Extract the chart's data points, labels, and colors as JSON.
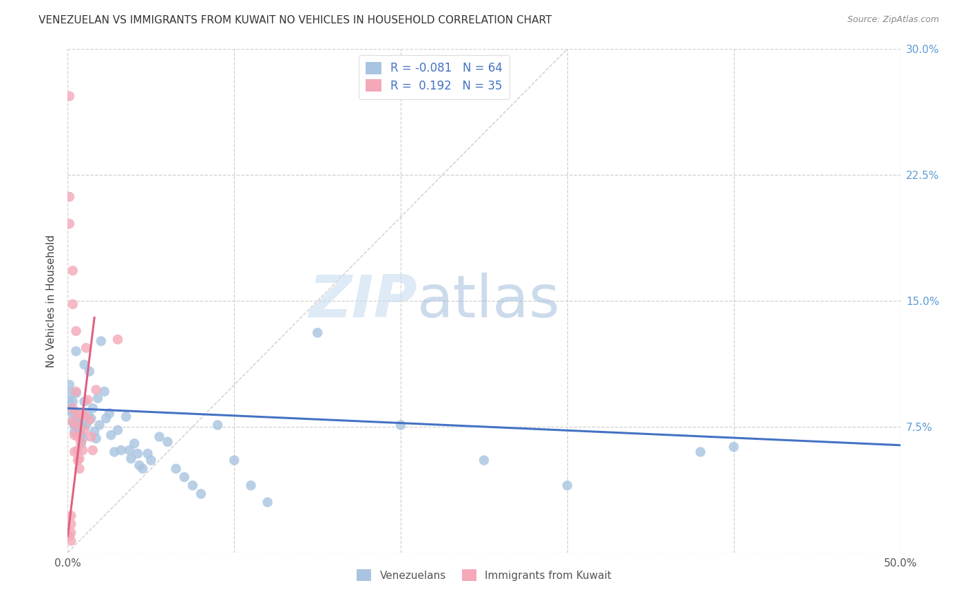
{
  "title": "VENEZUELAN VS IMMIGRANTS FROM KUWAIT NO VEHICLES IN HOUSEHOLD CORRELATION CHART",
  "source": "Source: ZipAtlas.com",
  "ylabel": "No Vehicles in Household",
  "xlim": [
    0.0,
    0.5
  ],
  "ylim": [
    0.0,
    0.3
  ],
  "xtick_positions": [
    0.0,
    0.1,
    0.2,
    0.3,
    0.4,
    0.5
  ],
  "xtick_labels": [
    "0.0%",
    "",
    "",
    "",
    "",
    "50.0%"
  ],
  "ytick_positions": [
    0.0,
    0.075,
    0.15,
    0.225,
    0.3
  ],
  "ytick_labels_right": [
    "",
    "7.5%",
    "15.0%",
    "22.5%",
    "30.0%"
  ],
  "r_venezuelan": -0.081,
  "n_venezuelan": 64,
  "r_kuwait": 0.192,
  "n_kuwait": 35,
  "venezuelan_color": "#a8c4e0",
  "kuwait_color": "#f4a8b8",
  "trendline_venezuelan_color": "#4472c4",
  "trendline_kuwait_color": "#e06080",
  "trendline_dashed_color": "#c8c8c8",
  "background_color": "#ffffff",
  "grid_color": "#d0d0d0",
  "watermark_zip": "ZIP",
  "watermark_atlas": "atlas",
  "legend_venezuelan_label": "Venezuelans",
  "legend_kuwait_label": "Immigrants from Kuwait",
  "venezuelan_x": [
    0.001,
    0.001,
    0.002,
    0.002,
    0.003,
    0.003,
    0.003,
    0.004,
    0.004,
    0.005,
    0.005,
    0.005,
    0.006,
    0.006,
    0.007,
    0.007,
    0.008,
    0.008,
    0.009,
    0.009,
    0.01,
    0.01,
    0.011,
    0.012,
    0.013,
    0.014,
    0.015,
    0.016,
    0.017,
    0.018,
    0.019,
    0.02,
    0.022,
    0.023,
    0.025,
    0.026,
    0.028,
    0.03,
    0.032,
    0.035,
    0.037,
    0.038,
    0.04,
    0.042,
    0.043,
    0.045,
    0.048,
    0.05,
    0.055,
    0.06,
    0.065,
    0.07,
    0.075,
    0.08,
    0.09,
    0.1,
    0.11,
    0.12,
    0.15,
    0.2,
    0.25,
    0.3,
    0.38,
    0.4
  ],
  "venezuelan_y": [
    0.1,
    0.09,
    0.095,
    0.085,
    0.09,
    0.082,
    0.078,
    0.076,
    0.072,
    0.12,
    0.095,
    0.082,
    0.08,
    0.075,
    0.08,
    0.072,
    0.07,
    0.065,
    0.076,
    0.068,
    0.112,
    0.09,
    0.076,
    0.082,
    0.108,
    0.08,
    0.086,
    0.072,
    0.068,
    0.092,
    0.076,
    0.126,
    0.096,
    0.08,
    0.083,
    0.07,
    0.06,
    0.073,
    0.061,
    0.081,
    0.061,
    0.056,
    0.065,
    0.059,
    0.052,
    0.05,
    0.059,
    0.055,
    0.069,
    0.066,
    0.05,
    0.045,
    0.04,
    0.035,
    0.076,
    0.055,
    0.04,
    0.03,
    0.131,
    0.076,
    0.055,
    0.04,
    0.06,
    0.063
  ],
  "kuwait_x": [
    0.001,
    0.001,
    0.001,
    0.002,
    0.002,
    0.002,
    0.002,
    0.003,
    0.003,
    0.003,
    0.003,
    0.004,
    0.004,
    0.005,
    0.005,
    0.005,
    0.005,
    0.006,
    0.006,
    0.006,
    0.007,
    0.007,
    0.008,
    0.008,
    0.009,
    0.01,
    0.01,
    0.011,
    0.012,
    0.013,
    0.014,
    0.015,
    0.017,
    0.03,
    0.001
  ],
  "kuwait_y": [
    0.272,
    0.212,
    0.196,
    0.007,
    0.012,
    0.017,
    0.022,
    0.168,
    0.148,
    0.086,
    0.078,
    0.07,
    0.06,
    0.132,
    0.096,
    0.083,
    0.076,
    0.069,
    0.061,
    0.055,
    0.056,
    0.05,
    0.082,
    0.066,
    0.061,
    0.082,
    0.073,
    0.122,
    0.091,
    0.079,
    0.069,
    0.061,
    0.097,
    0.127,
    0.01
  ],
  "ven_trendline_x": [
    0.0,
    0.5
  ],
  "ven_trendline_y": [
    0.086,
    0.064
  ],
  "kuw_trendline_x": [
    0.0,
    0.016
  ],
  "kuw_trendline_y": [
    0.01,
    0.14
  ],
  "diag_line_x": [
    0.0,
    0.3
  ],
  "diag_line_y": [
    0.0,
    0.3
  ]
}
